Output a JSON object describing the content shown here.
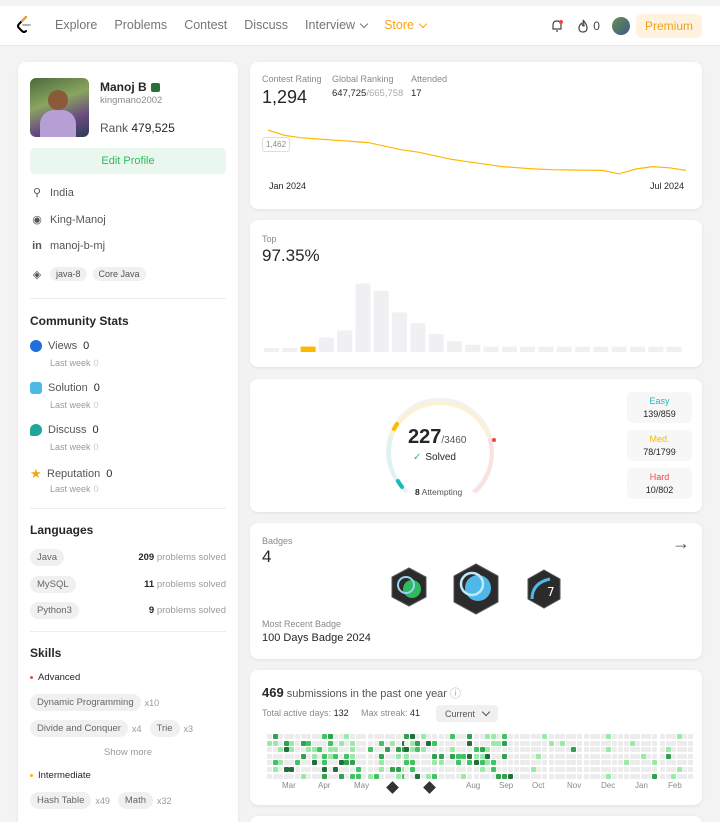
{
  "nav": {
    "links": [
      "Explore",
      "Problems",
      "Contest",
      "Discuss",
      "Interview"
    ],
    "store": "Store",
    "streak": "0",
    "premium": "Premium"
  },
  "profile": {
    "name": "Manoj B",
    "handle": "kingmano2002",
    "rank_label": "Rank",
    "rank_value": "479,525",
    "edit": "Edit Profile",
    "location": "India",
    "github": "King-Manoj",
    "linkedin": "manoj-b-mj",
    "tags": [
      "java-8",
      "Core Java"
    ]
  },
  "community": {
    "title": "Community Stats",
    "last_week": "Last week",
    "items": [
      {
        "label": "Views",
        "value": "0",
        "delta": "0",
        "color": "#1e6fd9"
      },
      {
        "label": "Solution",
        "value": "0",
        "delta": "0",
        "color": "#4fb8e8"
      },
      {
        "label": "Discuss",
        "value": "0",
        "delta": "0",
        "color": "#1ca79a"
      },
      {
        "label": "Reputation",
        "value": "0",
        "delta": "0",
        "color": "#f2a60f"
      }
    ]
  },
  "languages": {
    "title": "Languages",
    "suffix": "problems solved",
    "items": [
      {
        "name": "Java",
        "count": "209"
      },
      {
        "name": "MySQL",
        "count": "11"
      },
      {
        "name": "Python3",
        "count": "9"
      }
    ]
  },
  "skills": {
    "title": "Skills",
    "advanced": "Advanced",
    "intermediate": "Intermediate",
    "show_more": "Show more",
    "adv": [
      {
        "name": "Dynamic Programming",
        "x": "x10"
      },
      {
        "name": "Divide and Conquer",
        "x": "x4"
      },
      {
        "name": "Trie",
        "x": "x3"
      }
    ],
    "inter": [
      {
        "name": "Hash Table",
        "x": "x49"
      },
      {
        "name": "Math",
        "x": "x32"
      }
    ]
  },
  "contest": {
    "rating_label": "Contest Rating",
    "rating": "1,294",
    "global_label": "Global Ranking",
    "global": "647,725",
    "global_total": "/665,758",
    "attended_label": "Attended",
    "attended": "17",
    "marker": "1,462",
    "x_start": "Jan 2024",
    "x_end": "Jul 2024"
  },
  "top": {
    "label": "Top",
    "value": "97.35%"
  },
  "solved": {
    "count": "227",
    "total": "/3460",
    "solved": "Solved",
    "attempting": "8",
    "attempting_label": "Attempting",
    "easy": {
      "label": "Easy",
      "value": "139/859"
    },
    "med": {
      "label": "Med.",
      "value": "78/1799"
    },
    "hard": {
      "label": "Hard",
      "value": "10/802"
    }
  },
  "badges": {
    "label": "Badges",
    "count": "4",
    "recent_label": "Most Recent Badge",
    "recent": "100 Days Badge 2024"
  },
  "subs": {
    "count": "469",
    "text": "submissions in the past one year",
    "active_label": "Total active days:",
    "active": "132",
    "streak_label": "Max streak:",
    "streak": "41",
    "select": "Current",
    "months": [
      "Mar",
      "Apr",
      "May",
      "",
      "",
      "Aug",
      "Sep",
      "Oct",
      "Nov",
      "Dec",
      "Jan",
      "Feb"
    ]
  },
  "chart_data": [
    {
      "type": "line",
      "title": "Contest Rating",
      "x_ticks": [
        "Jan 2024",
        "Jul 2024"
      ],
      "y": [
        1462,
        1440,
        1430,
        1425,
        1420,
        1415,
        1410,
        1395,
        1380,
        1370,
        1355,
        1340,
        1330,
        1320,
        1310,
        1305,
        1300,
        1297,
        1296,
        1295,
        1294,
        1280,
        1300,
        1310,
        1305,
        1294
      ]
    },
    {
      "type": "bar",
      "title": "Top",
      "values": [
        2,
        2,
        3,
        8,
        12,
        38,
        34,
        22,
        16,
        10,
        6,
        4,
        3,
        3,
        3,
        3,
        3,
        3,
        3,
        3,
        3,
        3,
        3
      ]
    }
  ]
}
